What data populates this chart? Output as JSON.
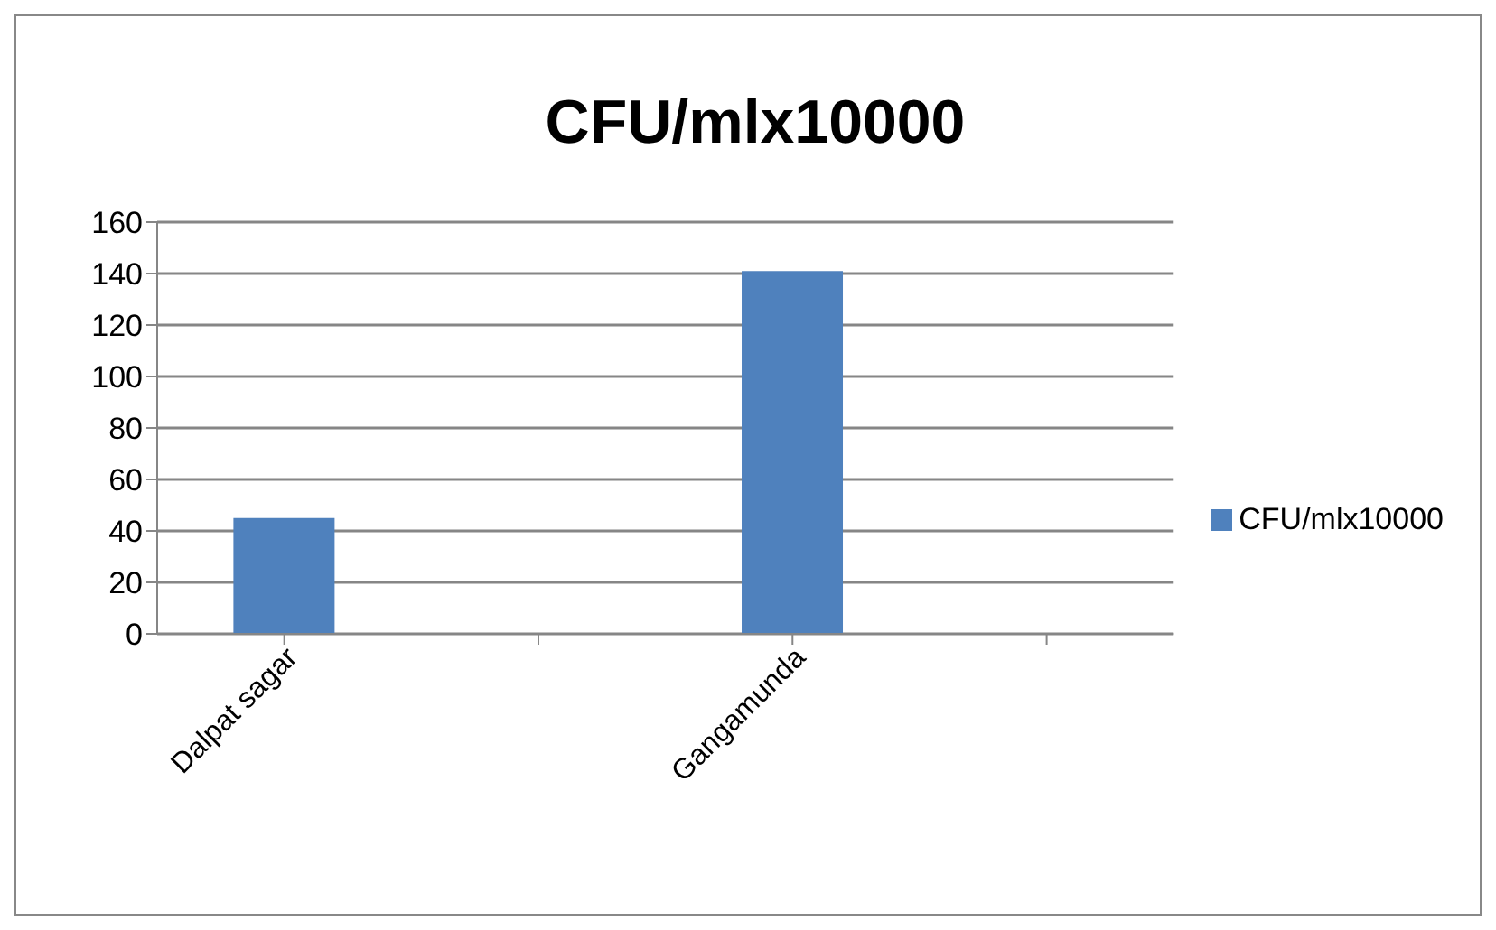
{
  "chart_data": {
    "type": "bar",
    "title": "CFU/mlx10000",
    "categories": [
      "Dalpat sagar",
      null,
      "Gangamunda",
      null
    ],
    "series": [
      {
        "name": "CFU/mlx10000",
        "color": "#4f81bd",
        "values": [
          45,
          null,
          141,
          null
        ]
      }
    ],
    "ylim": [
      0,
      160
    ],
    "yticks": [
      0,
      20,
      40,
      60,
      80,
      100,
      120,
      140,
      160
    ],
    "grid": "y",
    "legend": "right"
  }
}
